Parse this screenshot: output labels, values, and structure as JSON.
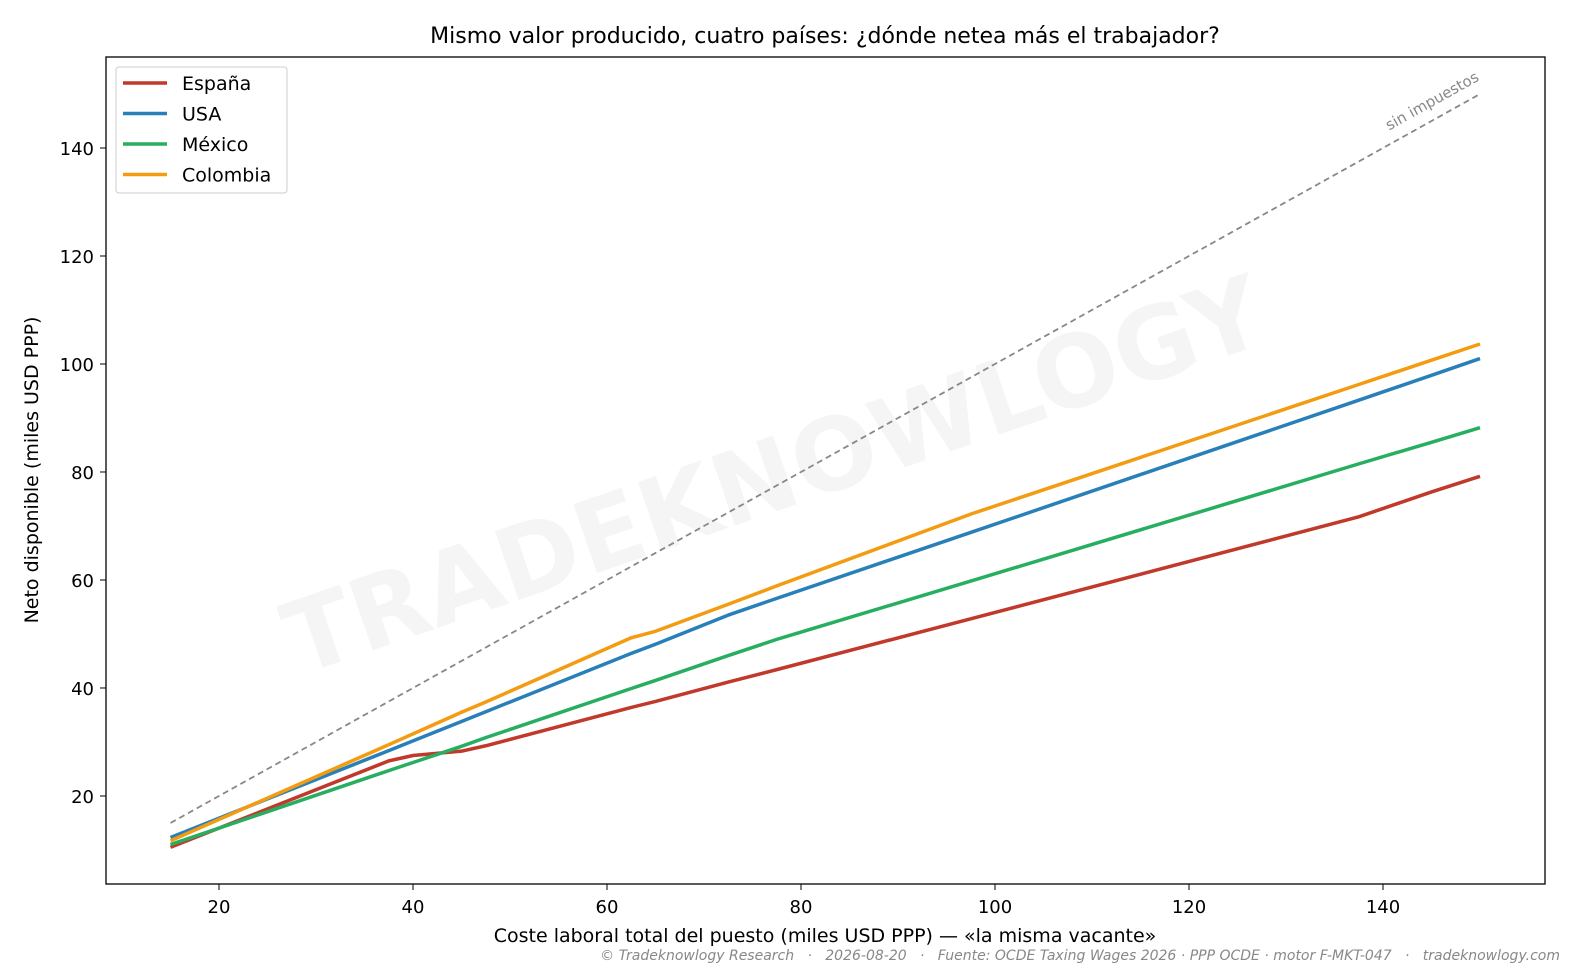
{
  "chart_data": {
    "type": "line",
    "title": "Mismo valor producido, cuatro países: ¿dónde netea más el trabajador?",
    "x_label": "Coste laboral total del puesto (miles USD PPP) — «la misma vacante»",
    "y_label": "Neto disponible (miles USD PPP)",
    "x": [
      15,
      37.5,
      40,
      45,
      47.5,
      62.5,
      65,
      72.5,
      77.5,
      97.5,
      137.5,
      145,
      150
    ],
    "series": [
      {
        "name": "España",
        "color": "#c0392b",
        "values": [
          10.5,
          26.5,
          27.5,
          28.3,
          29.3,
          36.4,
          37.5,
          41.1,
          43.4,
          52.8,
          71.7,
          76.3,
          79.2
        ]
      },
      {
        "name": "USA",
        "color": "#2980b9",
        "values": [
          12.3,
          28.4,
          30.2,
          33.8,
          35.6,
          46.4,
          48.1,
          53.5,
          56.6,
          68.8,
          93.3,
          97.9,
          101
        ]
      },
      {
        "name": "México",
        "color": "#27ae60",
        "values": [
          11,
          24.7,
          26.2,
          29.2,
          30.8,
          39.9,
          41.4,
          46.0,
          49.0,
          59.8,
          81.5,
          85.5,
          88.2
        ]
      },
      {
        "name": "Colombia",
        "color": "#f39c12",
        "values": [
          11.7,
          29.5,
          31.5,
          35.5,
          37.4,
          49.3,
          50.5,
          55.5,
          58.9,
          72.2,
          96.2,
          100.7,
          103.7
        ]
      }
    ],
    "reference": {
      "label": "sin impuestos",
      "x": [
        15,
        150
      ],
      "values": [
        15,
        150
      ],
      "color": "#888888"
    },
    "xlim": [
      8.35,
      156.7
    ],
    "ylim": [
      3.7,
      156.85
    ],
    "xticks": [
      20,
      40,
      60,
      80,
      100,
      120,
      140
    ],
    "yticks": [
      20,
      40,
      60,
      80,
      100,
      120,
      140
    ],
    "grid": false,
    "legend": "upper left",
    "watermark": "TRADEKNOWLOGY",
    "footer": "© Tradeknowlogy Research   ·   2026-08-20   ·   Fuente: OCDE Taxing Wages 2026 · PPP OCDE · motor F-MKT-047   ·   tradeknowlogy.com"
  }
}
